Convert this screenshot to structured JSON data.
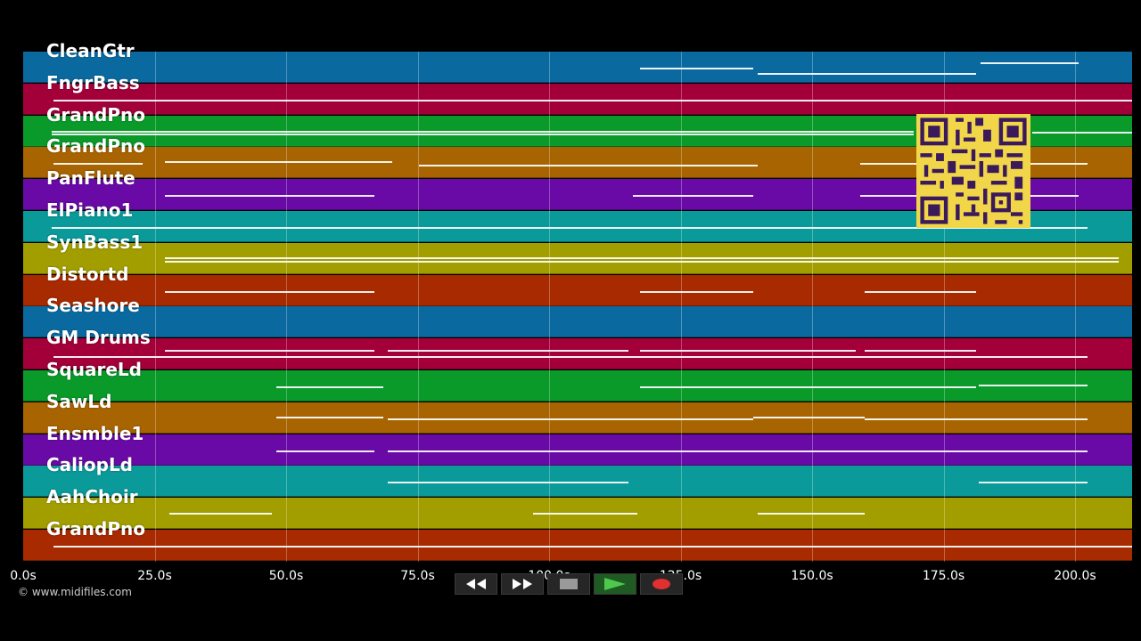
{
  "tracks": [
    {
      "name": "CleanGtr",
      "color": "#0a6aa0"
    },
    {
      "name": "FngrBass",
      "color": "#a3003a"
    },
    {
      "name": "GrandPno",
      "color": "#0a9a2a"
    },
    {
      "name": "GrandPno",
      "color": "#a86400"
    },
    {
      "name": "PanFlute",
      "color": "#6a0aa6"
    },
    {
      "name": "ElPiano1",
      "color": "#0a9a9a"
    },
    {
      "name": "SynBass1",
      "color": "#a29e00"
    },
    {
      "name": "Distortd",
      "color": "#a82a00"
    },
    {
      "name": "Seashore",
      "color": "#0a6aa0"
    },
    {
      "name": "GM Drums",
      "color": "#a3003a"
    },
    {
      "name": "SquareLd",
      "color": "#0a9a2a"
    },
    {
      "name": "SawLd",
      "color": "#a86400"
    },
    {
      "name": "Ensmble1",
      "color": "#6a0aa6"
    },
    {
      "name": "CaliopLd",
      "color": "#0a9a9a"
    },
    {
      "name": "AahChoir",
      "color": "#a29e00"
    },
    {
      "name": "GrandPno",
      "color": "#a82a00"
    }
  ],
  "time_axis": {
    "ticks": [
      "0.0s",
      "25.0s",
      "50.0s",
      "75.0s",
      "100.0s",
      "125.0s",
      "150.0s",
      "175.0s",
      "200.0s"
    ]
  },
  "copyright": "© www.midifiles.com",
  "transport": {
    "buttons": [
      {
        "name": "rewind-button",
        "icon": "rewind-icon"
      },
      {
        "name": "fast-forward-button",
        "icon": "fast-forward-icon"
      },
      {
        "name": "stop-button",
        "icon": "stop-icon"
      },
      {
        "name": "play-button",
        "icon": "play-icon"
      },
      {
        "name": "record-button",
        "icon": "record-icon"
      }
    ]
  },
  "qr_icon": "qr-code-icon"
}
